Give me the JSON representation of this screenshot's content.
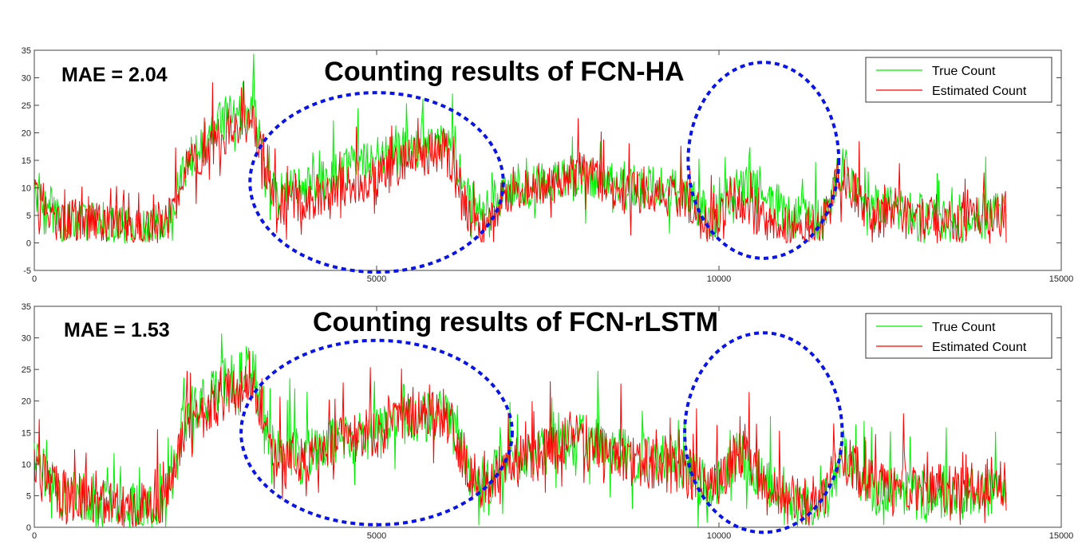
{
  "chart_data": [
    {
      "type": "line",
      "title": "Counting results of FCN-HA",
      "annotation": "MAE = 2.04",
      "xlabel": "",
      "ylabel": "",
      "xlim": [
        0,
        15000
      ],
      "ylim": [
        -5,
        35
      ],
      "xticks": [
        0,
        5000,
        10000,
        15000
      ],
      "yticks": [
        -5,
        0,
        5,
        10,
        15,
        20,
        25,
        30,
        35
      ],
      "legend_position": "top-right",
      "grid": false,
      "highlight_ellipses": [
        {
          "cx": 5000,
          "cy": 11,
          "rx": 1850,
          "ry": 16.3
        },
        {
          "cx": 10650,
          "cy": 15,
          "rx": 1100,
          "ry": 17.8
        }
      ],
      "series": [
        {
          "name": "True Count",
          "color": "#00ee00",
          "x": [
            0,
            200,
            400,
            800,
            1200,
            1600,
            2000,
            2200,
            2500,
            2800,
            3200,
            3500,
            4000,
            4500,
            5000,
            5500,
            6000,
            6400,
            6600,
            6900,
            7200,
            8000,
            8500,
            9000,
            9500,
            9900,
            10300,
            10800,
            11500,
            11800,
            12200,
            13000,
            13500,
            14000,
            14200
          ],
          "y": [
            10,
            7,
            4,
            4,
            3,
            2,
            5,
            14,
            19,
            23,
            24,
            9,
            10,
            13,
            16,
            17,
            19,
            7,
            6,
            11,
            10,
            12,
            11,
            10,
            9,
            4,
            12,
            7,
            4,
            14,
            7,
            5,
            3,
            5,
            6
          ]
        },
        {
          "name": "Estimated Count",
          "color": "#ff0000",
          "x": [
            0,
            200,
            400,
            800,
            1200,
            1600,
            2000,
            2200,
            2500,
            2800,
            3200,
            3500,
            4000,
            4500,
            5000,
            5500,
            6000,
            6400,
            6600,
            6900,
            7200,
            8000,
            8500,
            9000,
            9500,
            9900,
            10300,
            10800,
            11500,
            11800,
            12200,
            13000,
            13500,
            14000,
            14200
          ],
          "y": [
            9,
            6,
            4,
            4,
            3,
            2,
            5,
            13,
            17,
            20,
            21,
            7,
            8,
            10,
            12,
            15,
            17,
            4,
            3,
            9,
            10,
            13,
            10,
            9,
            8,
            3,
            8,
            3,
            3,
            13,
            5,
            5,
            4,
            5,
            5
          ]
        }
      ]
    },
    {
      "type": "line",
      "title": "Counting results of FCN-rLSTM",
      "annotation": "MAE = 1.53",
      "xlabel": "",
      "ylabel": "",
      "xlim": [
        0,
        15000
      ],
      "ylim": [
        0,
        35
      ],
      "xticks": [
        0,
        5000,
        10000,
        15000
      ],
      "yticks": [
        0,
        5,
        10,
        15,
        20,
        25,
        30,
        35
      ],
      "legend_position": "top-right",
      "grid": false,
      "highlight_ellipses": [
        {
          "cx": 5000,
          "cy": 15,
          "rx": 1980,
          "ry": 14.6
        },
        {
          "cx": 10650,
          "cy": 15,
          "rx": 1150,
          "ry": 15.8
        }
      ],
      "series": [
        {
          "name": "True Count",
          "color": "#00ee00",
          "x": [
            0,
            200,
            400,
            800,
            1200,
            1600,
            2000,
            2200,
            2500,
            2800,
            3200,
            3500,
            4000,
            4500,
            5000,
            5500,
            6000,
            6400,
            6600,
            6900,
            7200,
            8000,
            8500,
            9000,
            9500,
            9900,
            10300,
            10800,
            11500,
            11800,
            12200,
            13000,
            13500,
            14000,
            14200
          ],
          "y": [
            12,
            8,
            5,
            5,
            3,
            3,
            6,
            18,
            20,
            23,
            25,
            12,
            12,
            14,
            15,
            17,
            18,
            8,
            7,
            11,
            11,
            14,
            12,
            11,
            10,
            6,
            12,
            5,
            2,
            12,
            6,
            5,
            5,
            6,
            7
          ]
        },
        {
          "name": "Estimated Count",
          "color": "#ff0000",
          "x": [
            0,
            200,
            400,
            800,
            1200,
            1600,
            2000,
            2200,
            2500,
            2800,
            3200,
            3500,
            4000,
            4500,
            5000,
            5500,
            6000,
            6400,
            6600,
            6900,
            7200,
            8000,
            8500,
            9000,
            9500,
            9900,
            10300,
            10800,
            11500,
            11800,
            12200,
            13000,
            13500,
            14000,
            14200
          ],
          "y": [
            11,
            8,
            5,
            5,
            3,
            3,
            6,
            17,
            19,
            21,
            23,
            11,
            11,
            14,
            15,
            18,
            18,
            8,
            7,
            11,
            11,
            14,
            11,
            10,
            9,
            6,
            12,
            5,
            4,
            11,
            7,
            6,
            6,
            7,
            7
          ]
        }
      ]
    }
  ]
}
